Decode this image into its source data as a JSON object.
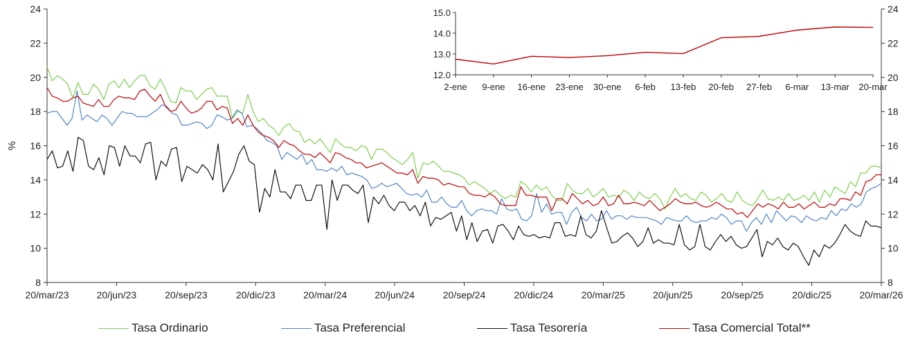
{
  "chart_data": [
    {
      "type": "line",
      "ylabel": "%",
      "ylim": [
        8,
        24
      ],
      "yticks": [
        "8",
        "10",
        "12",
        "14",
        "16",
        "18",
        "20",
        "22",
        "24"
      ],
      "right_yticks": [
        "8",
        "10",
        "12",
        "14",
        "16",
        "18",
        "20",
        "22",
        "24"
      ],
      "xticks": [
        "20/mar/23",
        "20/jun/23",
        "20/sep/23",
        "20/dic/23",
        "20/mar/24",
        "20/jun/24",
        "20/sep/24",
        "20/dic/24",
        "20/mar/25",
        "20/jun/25",
        "20/sep/25",
        "20/dic/25",
        "20/mar/26"
      ],
      "grid": false,
      "legend": "bottom",
      "series": [
        {
          "name": "Tasa Ordinario",
          "color": "#7ccf4c",
          "values": [
            20.6,
            19.8,
            20.1,
            19.9,
            19.6,
            18.8,
            19.7,
            19.0,
            19.0,
            19.6,
            19.3,
            18.7,
            19.6,
            19.8,
            19.4,
            19.9,
            19.4,
            19.8,
            20.1,
            20.1,
            19.5,
            19.3,
            19.9,
            19.3,
            18.6,
            18.5,
            19.4,
            19.2,
            19.2,
            18.7,
            19.0,
            19.3,
            19.4,
            18.9,
            18.9,
            18.9,
            17.6,
            18.0,
            17.9,
            19.0,
            18.0,
            17.4,
            17.6,
            17.2,
            17.0,
            16.6,
            17.1,
            17.3,
            16.9,
            16.8,
            16.2,
            16.4,
            16.1,
            16.4,
            16.0,
            15.6,
            16.4,
            16.1,
            15.9,
            15.9,
            15.7,
            16.0,
            15.9,
            15.2,
            15.8,
            15.8,
            15.6,
            15.3,
            15.1,
            14.9,
            15.2,
            15.6,
            14.1,
            15.0,
            14.9,
            15.1,
            14.8,
            14.5,
            14.5,
            14.4,
            14.3,
            14.1,
            13.7,
            13.9,
            13.7,
            13.5,
            13.2,
            13.4,
            13.1,
            12.9,
            13.1,
            13.0,
            13.9,
            13.7,
            13.3,
            13.7,
            13.4,
            13.6,
            13.1,
            12.8,
            12.8,
            13.8,
            13.4,
            13.2,
            13.2,
            13.5,
            13.0,
            13.2,
            13.5,
            13.0,
            13.1,
            13.0,
            13.4,
            13.2,
            12.8,
            13.3,
            13.0,
            12.9,
            13.2,
            12.9,
            12.3,
            13.0,
            13.5,
            13.0,
            13.2,
            12.9,
            12.8,
            13.3,
            13.1,
            12.7,
            12.9,
            13.2,
            12.8,
            12.7,
            13.3,
            12.8,
            12.6,
            12.5,
            12.9,
            13.4,
            12.9,
            12.8,
            13.0,
            12.8,
            13.2,
            12.8,
            12.9,
            13.1,
            12.8,
            13.3,
            12.7,
            13.4,
            13.0,
            13.6,
            13.4,
            13.2,
            13.9,
            13.6,
            14.4,
            14.4,
            14.8,
            14.8,
            14.7
          ]
        },
        {
          "name": "Tasa Preferencial",
          "color": "#4f86c6",
          "values": [
            17.9,
            18.0,
            18.0,
            17.6,
            17.2,
            17.6,
            19.2,
            17.5,
            17.8,
            17.6,
            17.4,
            17.8,
            17.6,
            17.2,
            17.6,
            18.0,
            17.9,
            17.9,
            17.7,
            17.7,
            17.7,
            17.9,
            18.1,
            18.4,
            18.3,
            17.9,
            17.8,
            17.2,
            17.2,
            17.3,
            17.4,
            17.3,
            17.0,
            17.2,
            17.8,
            17.7,
            17.5,
            17.6,
            18.1,
            17.9,
            17.1,
            17.2,
            17.0,
            16.7,
            16.3,
            16.2,
            16.0,
            15.2,
            15.6,
            15.4,
            15.2,
            15.5,
            14.9,
            15.2,
            14.6,
            14.6,
            14.5,
            14.7,
            14.5,
            14.8,
            14.3,
            14.4,
            14.3,
            14.2,
            14.0,
            13.5,
            13.6,
            13.8,
            13.6,
            13.7,
            13.8,
            13.5,
            13.2,
            13.1,
            13.2,
            13.0,
            13.4,
            12.7,
            12.7,
            13.0,
            12.6,
            12.4,
            12.4,
            12.8,
            12.2,
            11.9,
            12.2,
            12.3,
            12.2,
            12.2,
            12.0,
            12.9,
            12.3,
            12.2,
            12.3,
            11.7,
            11.6,
            11.9,
            13.2,
            12.1,
            12.6,
            12.0,
            12.1,
            12.1,
            11.4,
            12.1,
            12.4,
            11.8,
            11.6,
            12.0,
            11.6,
            11.7,
            12.2,
            11.7,
            11.9,
            11.9,
            11.7,
            11.9,
            11.8,
            11.8,
            11.8,
            11.7,
            11.6,
            11.4,
            11.8,
            11.7,
            11.6,
            11.6,
            11.9,
            11.6,
            11.5,
            11.6,
            11.6,
            11.8,
            11.7,
            12.0,
            11.8,
            11.4,
            11.6,
            11.6,
            11.0,
            11.5,
            11.8,
            11.4,
            12.0,
            11.5,
            12.2,
            11.9,
            11.6,
            11.9,
            11.8,
            11.5,
            11.9,
            11.7,
            11.6,
            11.8,
            11.7,
            12.2,
            11.9,
            12.3,
            12.2,
            12.6,
            12.4,
            12.6,
            13.3,
            13.5,
            13.6,
            13.8
          ]
        },
        {
          "name": "Tasa Tesorería",
          "color": "#111111",
          "values": [
            15.2,
            15.7,
            14.7,
            14.8,
            15.7,
            14.5,
            16.5,
            16.3,
            14.8,
            14.6,
            15.3,
            14.3,
            16.0,
            15.9,
            14.8,
            16.0,
            15.4,
            15.4,
            15.0,
            16.1,
            16.2,
            14.0,
            15.1,
            14.8,
            15.8,
            15.9,
            13.9,
            14.8,
            14.6,
            14.4,
            14.9,
            14.6,
            14.0,
            16.1,
            13.3,
            13.9,
            14.5,
            15.5,
            16.0,
            15.1,
            14.9,
            12.1,
            13.5,
            13.0,
            14.6,
            13.3,
            13.3,
            12.9,
            13.7,
            13.7,
            12.8,
            12.8,
            13.7,
            13.7,
            11.1,
            14.0,
            12.8,
            13.7,
            13.7,
            13.4,
            13.2,
            13.7,
            11.5,
            13.0,
            12.6,
            13.1,
            12.5,
            12.2,
            12.7,
            12.7,
            12.2,
            12.5,
            11.9,
            12.7,
            11.3,
            11.8,
            11.7,
            11.9,
            12.1,
            11.0,
            11.9,
            10.5,
            11.5,
            10.4,
            11.0,
            11.1,
            10.3,
            11.3,
            11.4,
            11.0,
            10.5,
            11.3,
            10.8,
            10.7,
            10.8,
            10.6,
            10.7,
            10.6,
            11.5,
            11.5,
            10.7,
            10.8,
            10.7,
            11.9,
            10.8,
            10.6,
            11.0,
            12.2,
            11.2,
            10.3,
            10.4,
            10.7,
            10.9,
            10.6,
            10.1,
            10.4,
            11.2,
            10.3,
            10.5,
            10.3,
            10.3,
            10.2,
            11.4,
            10.2,
            9.9,
            10.1,
            11.4,
            10.1,
            9.9,
            10.4,
            10.8,
            10.4,
            10.7,
            10.2,
            10.0,
            10.1,
            10.6,
            11.1,
            9.5,
            10.4,
            10.2,
            10.6,
            10.1,
            9.9,
            10.3,
            10.1,
            9.5,
            9.0,
            9.9,
            9.5,
            10.2,
            10.0,
            10.3,
            10.8,
            11.4,
            11.0,
            10.8,
            10.7,
            11.6,
            11.3,
            11.3,
            11.2
          ]
        },
        {
          "name": "Tasa Comercial Total**",
          "color": "#c00000",
          "values": [
            19.4,
            18.9,
            18.8,
            18.6,
            18.6,
            18.8,
            18.9,
            18.5,
            18.4,
            18.3,
            18.7,
            18.3,
            18.3,
            18.7,
            18.9,
            18.8,
            18.8,
            18.7,
            19.2,
            19.3,
            18.9,
            18.6,
            19.0,
            18.3,
            18.0,
            18.1,
            18.6,
            18.2,
            17.9,
            18.0,
            18.2,
            18.6,
            18.6,
            18.1,
            18.3,
            18.2,
            17.3,
            17.6,
            17.2,
            17.8,
            17.2,
            16.8,
            16.6,
            16.5,
            16.3,
            15.9,
            16.3,
            16.1,
            16.0,
            15.7,
            15.5,
            15.5,
            15.3,
            15.6,
            15.3,
            15.0,
            15.6,
            15.5,
            15.3,
            15.2,
            15.0,
            15.0,
            14.7,
            14.8,
            14.9,
            15.0,
            14.8,
            14.6,
            14.4,
            14.4,
            14.3,
            14.6,
            13.8,
            14.2,
            14.1,
            14.1,
            14.0,
            13.7,
            13.8,
            13.7,
            13.6,
            13.6,
            13.2,
            13.1,
            13.1,
            13.0,
            13.2,
            13.0,
            12.6,
            12.5,
            12.5,
            12.5,
            13.6,
            13.1,
            13.1,
            13.0,
            13.0,
            13.0,
            12.2,
            12.9,
            12.9,
            12.6,
            13.2,
            12.9,
            12.6,
            12.8,
            12.5,
            12.6,
            13.0,
            12.5,
            12.6,
            13.1,
            12.6,
            12.6,
            12.7,
            12.6,
            12.5,
            12.8,
            12.5,
            12.2,
            12.4,
            12.6,
            12.9,
            12.7,
            12.6,
            12.6,
            12.7,
            12.5,
            12.4,
            12.5,
            12.7,
            12.5,
            12.3,
            12.3,
            12.0,
            12.1,
            11.8,
            12.2,
            12.6,
            12.4,
            12.6,
            12.5,
            12.3,
            12.7,
            12.4,
            12.4,
            12.6,
            12.3,
            12.5,
            12.7,
            12.4,
            12.4,
            12.6,
            12.5,
            12.9,
            12.9,
            12.8,
            13.3,
            13.1,
            13.9,
            14.0,
            14.3,
            14.3
          ]
        }
      ]
    },
    {
      "type": "line",
      "ylim": [
        12,
        15
      ],
      "yticks": [
        "12.0",
        "13.0",
        "14.0",
        "15.0"
      ],
      "categories": [
        "2-ene",
        "9-ene",
        "16-ene",
        "23-ene",
        "30-ene",
        "6-feb",
        "13-feb",
        "20-feb",
        "27-feb",
        "6-mar",
        "13-mar",
        "20-mar"
      ],
      "grid": false,
      "series": [
        {
          "color": "#c00000",
          "values": [
            12.75,
            12.52,
            12.89,
            12.83,
            12.92,
            13.08,
            13.02,
            13.78,
            13.85,
            14.15,
            14.3,
            14.28
          ]
        }
      ]
    }
  ],
  "legend": {
    "items": [
      {
        "label": "Tasa Ordinario",
        "color": "#7ccf4c"
      },
      {
        "label": "Tasa Preferencial",
        "color": "#4f86c6"
      },
      {
        "label": "Tasa Tesorería",
        "color": "#111111"
      },
      {
        "label": "Tasa Comercial Total**",
        "color": "#c00000"
      }
    ]
  }
}
